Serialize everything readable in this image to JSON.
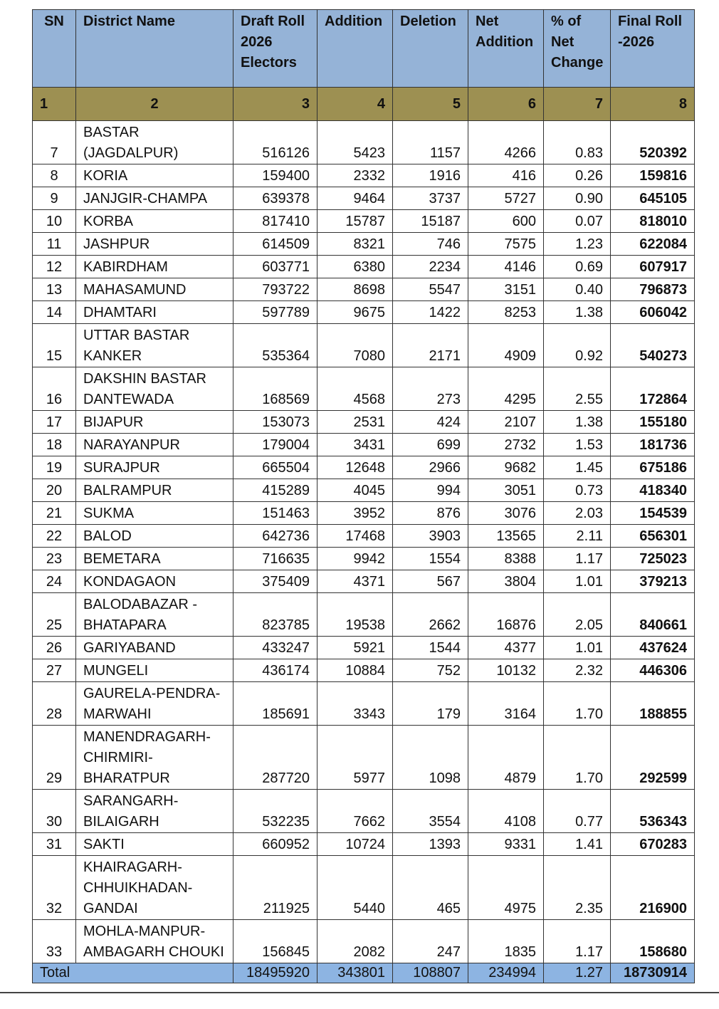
{
  "table": {
    "headers": [
      [
        "SN"
      ],
      [
        "District Name"
      ],
      [
        "Draft Roll",
        "2026",
        "Electors"
      ],
      [
        "Addition"
      ],
      [
        "Deletion"
      ],
      [
        "Net",
        "Addition"
      ],
      [
        "% of",
        "Net",
        "Change"
      ],
      [
        "Final Roll",
        "-2026"
      ]
    ],
    "column_numbers": [
      1,
      2,
      3,
      4,
      5,
      6,
      7,
      8
    ],
    "rows": [
      [
        7,
        [
          "BASTAR",
          "(JAGDALPUR)"
        ],
        516126,
        5423,
        1157,
        4266,
        "0.83",
        520392
      ],
      [
        8,
        [
          "KORIA"
        ],
        159400,
        2332,
        1916,
        416,
        "0.26",
        159816
      ],
      [
        9,
        [
          "JANJGIR-CHAMPA"
        ],
        639378,
        9464,
        3737,
        5727,
        "0.90",
        645105
      ],
      [
        10,
        [
          "KORBA"
        ],
        817410,
        15787,
        15187,
        600,
        "0.07",
        818010
      ],
      [
        11,
        [
          "JASHPUR"
        ],
        614509,
        8321,
        746,
        7575,
        "1.23",
        622084
      ],
      [
        12,
        [
          "KABIRDHAM"
        ],
        603771,
        6380,
        2234,
        4146,
        "0.69",
        607917
      ],
      [
        13,
        [
          "MAHASAMUND"
        ],
        793722,
        8698,
        5547,
        3151,
        "0.40",
        796873
      ],
      [
        14,
        [
          "DHAMTARI"
        ],
        597789,
        9675,
        1422,
        8253,
        "1.38",
        606042
      ],
      [
        15,
        [
          "UTTAR BASTAR",
          "KANKER"
        ],
        535364,
        7080,
        2171,
        4909,
        "0.92",
        540273
      ],
      [
        16,
        [
          "DAKSHIN BASTAR",
          "DANTEWADA"
        ],
        168569,
        4568,
        273,
        4295,
        "2.55",
        172864
      ],
      [
        17,
        [
          "BIJAPUR"
        ],
        153073,
        2531,
        424,
        2107,
        "1.38",
        155180
      ],
      [
        18,
        [
          "NARAYANPUR"
        ],
        179004,
        3431,
        699,
        2732,
        "1.53",
        181736
      ],
      [
        19,
        [
          "SURAJPUR"
        ],
        665504,
        12648,
        2966,
        9682,
        "1.45",
        675186
      ],
      [
        20,
        [
          "BALRAMPUR"
        ],
        415289,
        4045,
        994,
        3051,
        "0.73",
        418340
      ],
      [
        21,
        [
          "SUKMA"
        ],
        151463,
        3952,
        876,
        3076,
        "2.03",
        154539
      ],
      [
        22,
        [
          "BALOD"
        ],
        642736,
        17468,
        3903,
        13565,
        "2.11",
        656301
      ],
      [
        23,
        [
          "BEMETARA"
        ],
        716635,
        9942,
        1554,
        8388,
        "1.17",
        725023
      ],
      [
        24,
        [
          "KONDAGAON"
        ],
        375409,
        4371,
        567,
        3804,
        "1.01",
        379213
      ],
      [
        25,
        [
          "BALODABAZAR -",
          "BHATAPARA"
        ],
        823785,
        19538,
        2662,
        16876,
        "2.05",
        840661
      ],
      [
        26,
        [
          "GARIYABAND"
        ],
        433247,
        5921,
        1544,
        4377,
        "1.01",
        437624
      ],
      [
        27,
        [
          "MUNGELI"
        ],
        436174,
        10884,
        752,
        10132,
        "2.32",
        446306
      ],
      [
        28,
        [
          "GAURELA-PENDRA-",
          "MARWAHI"
        ],
        185691,
        3343,
        179,
        3164,
        "1.70",
        188855
      ],
      [
        29,
        [
          "MANENDRAGARH-",
          "CHIRMIRI-",
          "BHARATPUR"
        ],
        287720,
        5977,
        1098,
        4879,
        "1.70",
        292599
      ],
      [
        30,
        [
          "SARANGARH-",
          "BILAIGARH"
        ],
        532235,
        7662,
        3554,
        4108,
        "0.77",
        536343
      ],
      [
        31,
        [
          "SAKTI"
        ],
        660952,
        10724,
        1393,
        9331,
        "1.41",
        670283
      ],
      [
        32,
        [
          "KHAIRAGARH-",
          "CHHUIKHADAN-",
          "GANDAI"
        ],
        211925,
        5440,
        465,
        4975,
        "2.35",
        216900
      ],
      [
        33,
        [
          "MOHLA-MANPUR-",
          "AMBAGARH CHOUKI"
        ],
        156845,
        2082,
        247,
        1835,
        "1.17",
        158680
      ]
    ],
    "total": [
      "Total",
      18495920,
      343801,
      108807,
      234994,
      "1.27",
      18730914
    ]
  }
}
